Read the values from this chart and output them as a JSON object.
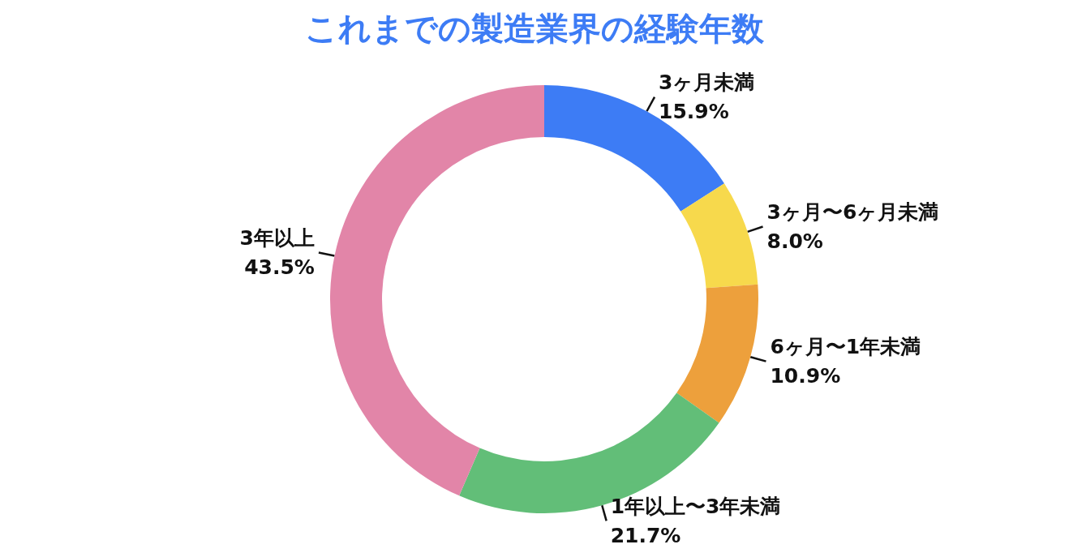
{
  "chart_data": {
    "type": "donut",
    "title": "これまでの製造業界の経験年数",
    "categories": [
      "3ヶ月未満",
      "3ヶ月〜6ヶ月未満",
      "6ヶ月〜1年未満",
      "1年以上〜3年未満",
      "3年以上"
    ],
    "values": [
      15.9,
      8.0,
      10.9,
      21.7,
      43.5
    ],
    "value_labels": [
      "15.9%",
      "8.0%",
      "10.9%",
      "21.7%",
      "43.5%"
    ],
    "colors": [
      "#3d7cf5",
      "#f7d94c",
      "#eda03c",
      "#62be78",
      "#e285a8"
    ],
    "legend": false
  }
}
